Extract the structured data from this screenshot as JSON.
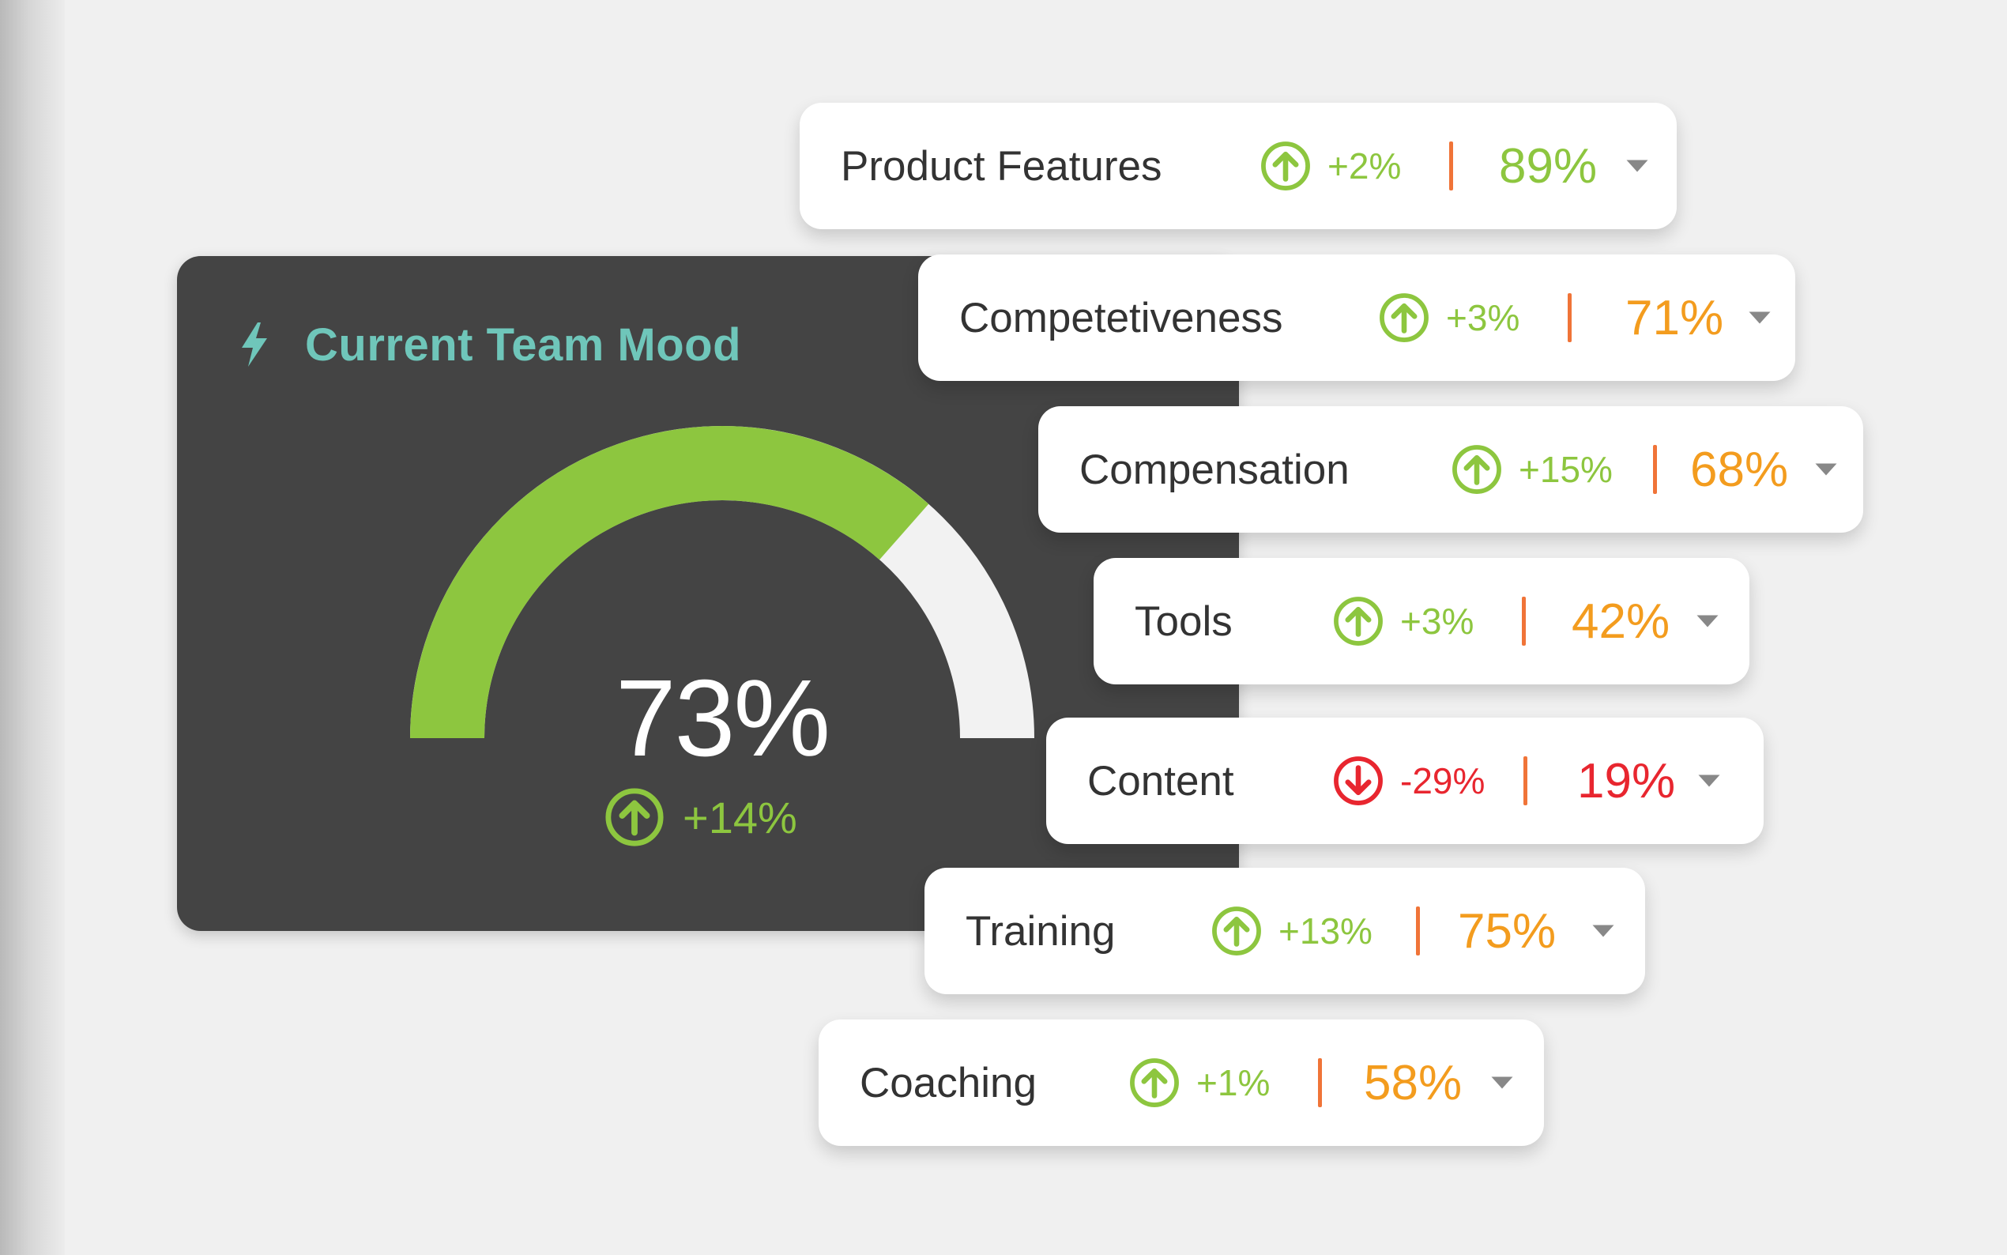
{
  "colors": {
    "background": "#f0f0f0",
    "card_dark": "#444444",
    "title_teal": "#6fc6ba",
    "green": "#8dc63f",
    "orange": "#f39c1e",
    "red": "#e8262f",
    "separator": "#f07438",
    "gauge_track": "#f2f2f2"
  },
  "mood": {
    "icon": "lightning-bolt-icon",
    "title": "Current Team Mood",
    "value": "73%",
    "level": 73,
    "delta": "+14%",
    "delta_icon": "arrow-up-circle-icon"
  },
  "metrics": [
    {
      "label": "Product Features",
      "delta": "+2%",
      "trend": "up",
      "value": "89%",
      "value_color": "#8dc63f"
    },
    {
      "label": "Competetiveness",
      "delta": "+3%",
      "trend": "up",
      "value": "71%",
      "value_color": "#f39c1e"
    },
    {
      "label": "Compensation",
      "delta": "+15%",
      "trend": "up",
      "value": "68%",
      "value_color": "#f39c1e"
    },
    {
      "label": "Tools",
      "delta": "+3%",
      "trend": "up",
      "value": "42%",
      "value_color": "#f39c1e"
    },
    {
      "label": "Content",
      "delta": "-29%",
      "trend": "down",
      "value": "19%",
      "value_color": "#e8262f"
    },
    {
      "label": "Training",
      "delta": "+13%",
      "trend": "up",
      "value": "75%",
      "value_color": "#f39c1e"
    },
    {
      "label": "Coaching",
      "delta": "+1%",
      "trend": "up",
      "value": "58%",
      "value_color": "#f39c1e"
    }
  ]
}
